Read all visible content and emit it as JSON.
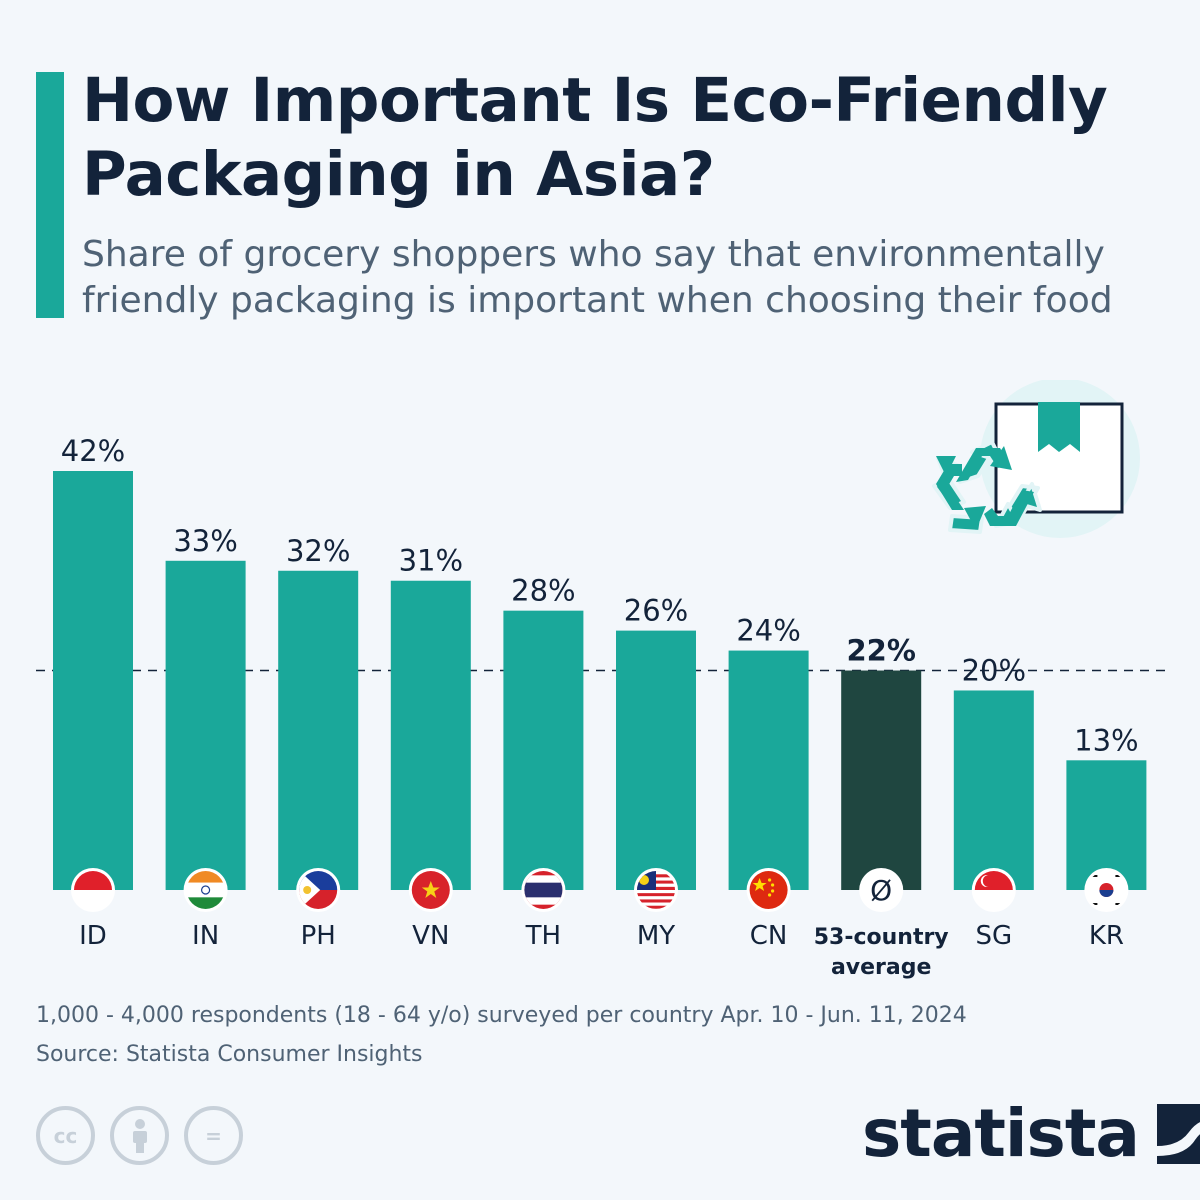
{
  "title": "How Important Is Eco-Friendly Packaging in Asia?",
  "subtitle": "Share of grocery shoppers who say that environmentally friendly packaging is important when choosing their food",
  "chart_data": {
    "type": "bar",
    "categories": [
      "ID",
      "IN",
      "PH",
      "VN",
      "TH",
      "MY",
      "CN",
      "53-country average",
      "SG",
      "KR"
    ],
    "values": [
      42,
      33,
      32,
      31,
      28,
      26,
      24,
      22,
      20,
      13
    ],
    "value_labels": [
      "42%",
      "33%",
      "32%",
      "31%",
      "28%",
      "26%",
      "24%",
      "22%",
      "20%",
      "13%"
    ],
    "highlight_index": 7,
    "average_value": 22,
    "average_marker": "Ø",
    "colors": {
      "bar": "#1aa89a",
      "highlight": "#1f4640",
      "reference_line": "#13233a"
    },
    "ylim": [
      0,
      42
    ],
    "grid": false,
    "reference_line": "dashed at average"
  },
  "footnote": "1,000 - 4,000 respondents (18 - 64 y/o) surveyed per country Apr. 10 - Jun. 11, 2024",
  "source": "Source: Statista Consumer Insights",
  "license_icons": [
    "cc-icon",
    "attribution-icon",
    "no-derivatives-icon"
  ],
  "license_glyphs": [
    "cc",
    "i",
    "="
  ],
  "brand": "statista"
}
